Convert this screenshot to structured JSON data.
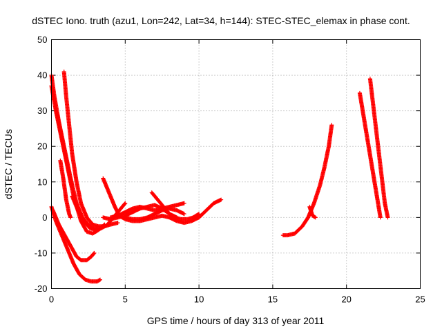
{
  "chart_data": {
    "type": "scatter",
    "title": "dSTEC Iono. truth (azu1, Lon=242, Lat=34, h=144): STEC-STEC_elemax in phase cont.",
    "xlabel": "GPS time / hours of day 313 of year 2011",
    "ylabel": "dSTEC  / TECUs",
    "xlim": [
      0,
      25
    ],
    "ylim": [
      -20,
      50
    ],
    "xticks": [
      0,
      5,
      10,
      15,
      20,
      25
    ],
    "yticks": [
      -20,
      -10,
      0,
      10,
      20,
      30,
      40,
      50
    ],
    "grid": true,
    "marker": "plus",
    "marker_color": "#ff0000",
    "series": [
      {
        "points": [
          [
            0.0,
            40
          ],
          [
            0.2,
            34
          ],
          [
            0.5,
            27
          ],
          [
            0.9,
            19
          ],
          [
            1.3,
            11
          ],
          [
            1.7,
            4
          ],
          [
            2.1,
            0
          ],
          [
            2.5,
            -2
          ],
          [
            2.8,
            -3
          ],
          [
            3.1,
            -3
          ]
        ]
      },
      {
        "points": [
          [
            0.0,
            37
          ],
          [
            0.3,
            30
          ],
          [
            0.7,
            22
          ],
          [
            1.1,
            14
          ],
          [
            1.5,
            6
          ],
          [
            2.0,
            -1
          ],
          [
            2.4,
            -4
          ],
          [
            2.8,
            -4.5
          ],
          [
            3.2,
            -3.5
          ],
          [
            3.6,
            -2
          ]
        ]
      },
      {
        "points": [
          [
            0.0,
            3
          ],
          [
            0.3,
            -1
          ],
          [
            0.7,
            -5
          ],
          [
            1.1,
            -9
          ],
          [
            1.5,
            -13
          ],
          [
            1.9,
            -16
          ],
          [
            2.3,
            -17.5
          ],
          [
            2.7,
            -18
          ],
          [
            3.1,
            -18
          ],
          [
            3.3,
            -17.5
          ]
        ]
      },
      {
        "points": [
          [
            0.1,
            2
          ],
          [
            0.5,
            -2
          ],
          [
            0.9,
            -5
          ],
          [
            1.3,
            -8
          ],
          [
            1.7,
            -11
          ],
          [
            2.0,
            -12
          ],
          [
            2.4,
            -12
          ],
          [
            2.7,
            -11
          ],
          [
            2.9,
            -10
          ]
        ]
      },
      {
        "points": [
          [
            0.6,
            16
          ],
          [
            0.8,
            11
          ],
          [
            1.0,
            5
          ],
          [
            1.2,
            1
          ],
          [
            1.3,
            0
          ]
        ]
      },
      {
        "points": [
          [
            0.85,
            41
          ],
          [
            1.0,
            34
          ],
          [
            1.2,
            26
          ],
          [
            1.4,
            18
          ],
          [
            1.7,
            10
          ],
          [
            2.0,
            4
          ],
          [
            2.4,
            0
          ],
          [
            2.8,
            -2
          ],
          [
            3.2,
            -2.5
          ],
          [
            3.6,
            -2.5
          ],
          [
            4.0,
            -2
          ],
          [
            4.5,
            -1.5
          ]
        ]
      },
      {
        "points": [
          [
            1.4,
            6
          ],
          [
            1.8,
            2
          ],
          [
            2.2,
            -1
          ],
          [
            2.6,
            -3
          ],
          [
            3.0,
            -3.5
          ],
          [
            3.4,
            -3
          ],
          [
            3.8,
            -2
          ],
          [
            4.2,
            0
          ],
          [
            4.6,
            2
          ],
          [
            5.0,
            4
          ]
        ]
      },
      {
        "points": [
          [
            3.5,
            11
          ],
          [
            3.9,
            7
          ],
          [
            4.3,
            3
          ],
          [
            4.6,
            0.5
          ],
          [
            5.0,
            -0.5
          ],
          [
            5.5,
            -1
          ],
          [
            6.0,
            -1
          ],
          [
            6.5,
            -0.5
          ],
          [
            7.0,
            0
          ],
          [
            7.5,
            0.5
          ],
          [
            8.0,
            0
          ],
          [
            8.5,
            -1
          ],
          [
            9.0,
            -1.5
          ],
          [
            9.5,
            -1
          ],
          [
            10.0,
            0
          ],
          [
            10.5,
            2
          ],
          [
            11.0,
            4
          ],
          [
            11.5,
            5
          ]
        ]
      },
      {
        "points": [
          [
            3.5,
            0
          ],
          [
            4.0,
            -0.5
          ],
          [
            4.5,
            0
          ],
          [
            5.0,
            0.5
          ],
          [
            5.5,
            1.5
          ],
          [
            6.0,
            2.5
          ],
          [
            6.5,
            3
          ],
          [
            7.0,
            3.5
          ],
          [
            7.5,
            2.5
          ],
          [
            8.0,
            1
          ],
          [
            8.5,
            0
          ]
        ]
      },
      {
        "points": [
          [
            4.0,
            0
          ],
          [
            4.5,
            0.5
          ],
          [
            5.0,
            1.5
          ],
          [
            5.5,
            2.5
          ],
          [
            6.0,
            3
          ],
          [
            6.5,
            2.5
          ],
          [
            7.0,
            2
          ],
          [
            7.5,
            2.5
          ],
          [
            8.0,
            3
          ],
          [
            8.5,
            3.5
          ],
          [
            9.0,
            4
          ]
        ]
      },
      {
        "points": [
          [
            6.8,
            7
          ],
          [
            7.2,
            5
          ],
          [
            7.6,
            3
          ],
          [
            8.0,
            1
          ],
          [
            8.4,
            0
          ],
          [
            8.8,
            -0.5
          ],
          [
            9.2,
            -0.5
          ],
          [
            9.6,
            0
          ],
          [
            10.0,
            1
          ]
        ]
      },
      {
        "points": [
          [
            5.0,
            0
          ],
          [
            5.5,
            -0.5
          ],
          [
            6.0,
            -0.5
          ],
          [
            6.5,
            0
          ],
          [
            7.0,
            1
          ],
          [
            7.5,
            2
          ],
          [
            8.0,
            2.5
          ],
          [
            8.5,
            2
          ],
          [
            9.0,
            1
          ]
        ]
      },
      {
        "points": [
          [
            15.7,
            -5
          ],
          [
            16.0,
            -5
          ],
          [
            16.5,
            -4.5
          ],
          [
            17.0,
            -2.5
          ],
          [
            17.4,
            0
          ],
          [
            17.8,
            4
          ],
          [
            18.2,
            9
          ],
          [
            18.5,
            14
          ],
          [
            18.8,
            20
          ],
          [
            19.0,
            26
          ]
        ]
      },
      {
        "points": [
          [
            17.5,
            3
          ],
          [
            17.7,
            0.5
          ],
          [
            17.9,
            0
          ]
        ]
      },
      {
        "points": [
          [
            20.9,
            35
          ],
          [
            21.1,
            30
          ],
          [
            21.3,
            25
          ],
          [
            21.5,
            20
          ],
          [
            21.7,
            15
          ],
          [
            21.9,
            10
          ],
          [
            22.1,
            5
          ],
          [
            22.3,
            0
          ]
        ]
      },
      {
        "points": [
          [
            21.6,
            39
          ],
          [
            21.8,
            32
          ],
          [
            22.0,
            25
          ],
          [
            22.2,
            18
          ],
          [
            22.4,
            11
          ],
          [
            22.6,
            4
          ],
          [
            22.8,
            0
          ]
        ]
      }
    ]
  }
}
